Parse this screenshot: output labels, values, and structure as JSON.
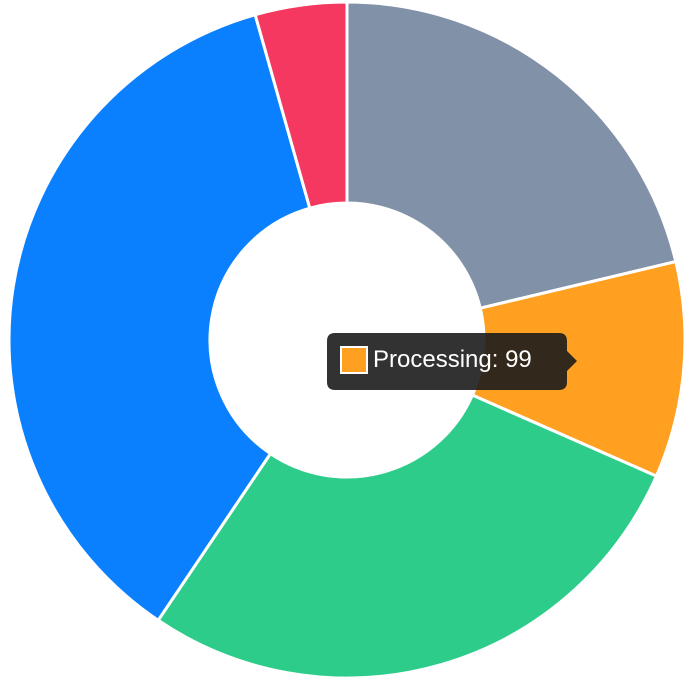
{
  "chart_data": {
    "type": "doughnut",
    "categories": [
      null,
      "Processing",
      null,
      null,
      null
    ],
    "values": [
      204,
      99,
      267,
      347,
      42
    ],
    "colors": [
      "#8091a8",
      "#ffa020",
      "#2ecc8a",
      "#0a80ff",
      "#f5385f"
    ],
    "tooltip_index": 1
  }
}
